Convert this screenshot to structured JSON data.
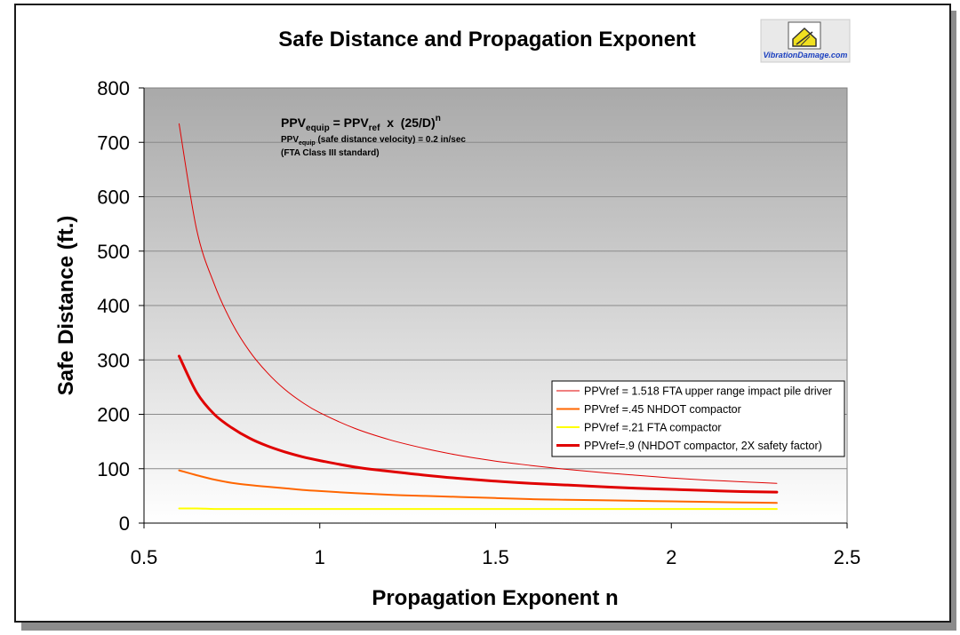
{
  "logo": {
    "text": "VibrationDamage.com"
  },
  "formula": {
    "line1_parts": [
      "PPV",
      "equip",
      " = PPV",
      "ref",
      "  x  (25/D)",
      "n"
    ],
    "line2_parts": [
      "PPV",
      "equip",
      " (safe distance velocity) = 0.2 in/sec"
    ],
    "line3": "(FTA Class III standard)"
  },
  "colors": {
    "frame_border": "#1a1a1a",
    "plot_top": "#aaaaaa",
    "plot_bottom": "#ffffff",
    "series_red": "#e00000",
    "series_orange": "#ff6600",
    "series_yellow": "#ffff00"
  },
  "chart_data": {
    "type": "line",
    "title": "Safe Distance and Propagation Exponent",
    "xlabel": "Propagation Exponent n",
    "ylabel": "Safe Distance (ft.)",
    "xlim": [
      0.5,
      2.5
    ],
    "ylim": [
      0,
      800
    ],
    "xticks": [
      0.5,
      1,
      1.5,
      2,
      2.5
    ],
    "xtick_labels": [
      "0.5",
      "1",
      "1.5",
      "2",
      "2.5"
    ],
    "yticks": [
      0,
      100,
      200,
      300,
      400,
      500,
      600,
      700,
      800
    ],
    "ytick_labels": [
      "0",
      "100",
      "200",
      "300",
      "400",
      "500",
      "600",
      "700",
      "800"
    ],
    "grid": "horizontal",
    "legend_position": "right",
    "x": [
      0.6,
      0.65,
      0.7,
      0.75,
      0.8,
      0.85,
      0.9,
      0.95,
      1.0,
      1.1,
      1.2,
      1.3,
      1.4,
      1.5,
      1.6,
      1.7,
      1.8,
      1.9,
      2.0,
      2.1,
      2.2,
      2.3
    ],
    "series": [
      {
        "name": "PPVref = 1.518 FTA upper range impact pile driver",
        "color": "#e00000",
        "width": 1,
        "values": [
          734,
          539,
          439,
          368,
          316,
          277,
          246,
          222,
          203,
          174,
          153,
          137,
          124,
          114,
          106,
          99,
          93,
          88,
          83,
          79,
          76,
          73
        ]
      },
      {
        "name": "PPVref =.45 NHDOT compactor",
        "color": "#ff6600",
        "width": 2,
        "values": [
          97,
          88,
          80,
          74,
          70,
          67,
          64,
          61,
          59,
          55,
          52,
          50,
          48,
          46,
          44,
          43,
          42,
          41,
          40,
          39,
          38,
          37
        ]
      },
      {
        "name": "PPVref =.21 FTA compactor",
        "color": "#ffff00",
        "width": 2,
        "values": [
          27,
          27,
          26,
          26,
          26,
          26,
          26,
          26,
          26,
          26,
          26,
          26,
          26,
          26,
          26,
          26,
          26,
          26,
          26,
          26,
          26,
          26
        ]
      },
      {
        "name": "PPVref=.9 (NHDOT compactor, 2X safety factor)",
        "color": "#e00000",
        "width": 3,
        "values": [
          307,
          240,
          200,
          175,
          156,
          142,
          131,
          122,
          115,
          103,
          95,
          88,
          82,
          77,
          73,
          70,
          67,
          64,
          62,
          60,
          58,
          57
        ]
      }
    ]
  }
}
